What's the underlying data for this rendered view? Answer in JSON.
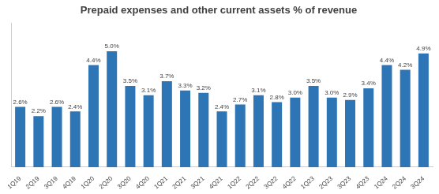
{
  "chart_data": {
    "type": "bar",
    "title": "Prepaid expenses and other current assets % of revenue",
    "categories": [
      "1Q19",
      "2Q19",
      "3Q19",
      "4Q19",
      "1Q20",
      "2Q20",
      "3Q20",
      "4Q20",
      "1Q21",
      "2Q21",
      "3Q21",
      "4Q21",
      "1Q22",
      "2Q22",
      "3Q22",
      "4Q22",
      "1Q23",
      "2Q23",
      "3Q23",
      "4Q23",
      "1Q24",
      "2Q24",
      "3Q24"
    ],
    "values": [
      2.6,
      2.2,
      2.6,
      2.4,
      4.4,
      5.0,
      3.5,
      3.1,
      3.7,
      3.3,
      3.2,
      2.4,
      2.7,
      3.1,
      2.8,
      3.0,
      3.5,
      3.0,
      2.9,
      3.4,
      4.4,
      4.2,
      4.9
    ],
    "value_labels": [
      "2.6%",
      "2.2%",
      "2.6%",
      "2.4%",
      "4.4%",
      "5.0%",
      "3.5%",
      "3.1%",
      "3.7%",
      "3.3%",
      "3.2%",
      "2.4%",
      "2.7%",
      "3.1%",
      "2.8%",
      "3.0%",
      "3.5%",
      "3.0%",
      "2.9%",
      "3.4%",
      "4.4%",
      "4.2%",
      "4.9%"
    ],
    "color": "#2E75B6",
    "ylim": [
      0,
      6.2
    ],
    "data_labels": true,
    "tick_labels": "x",
    "grid": false
  }
}
